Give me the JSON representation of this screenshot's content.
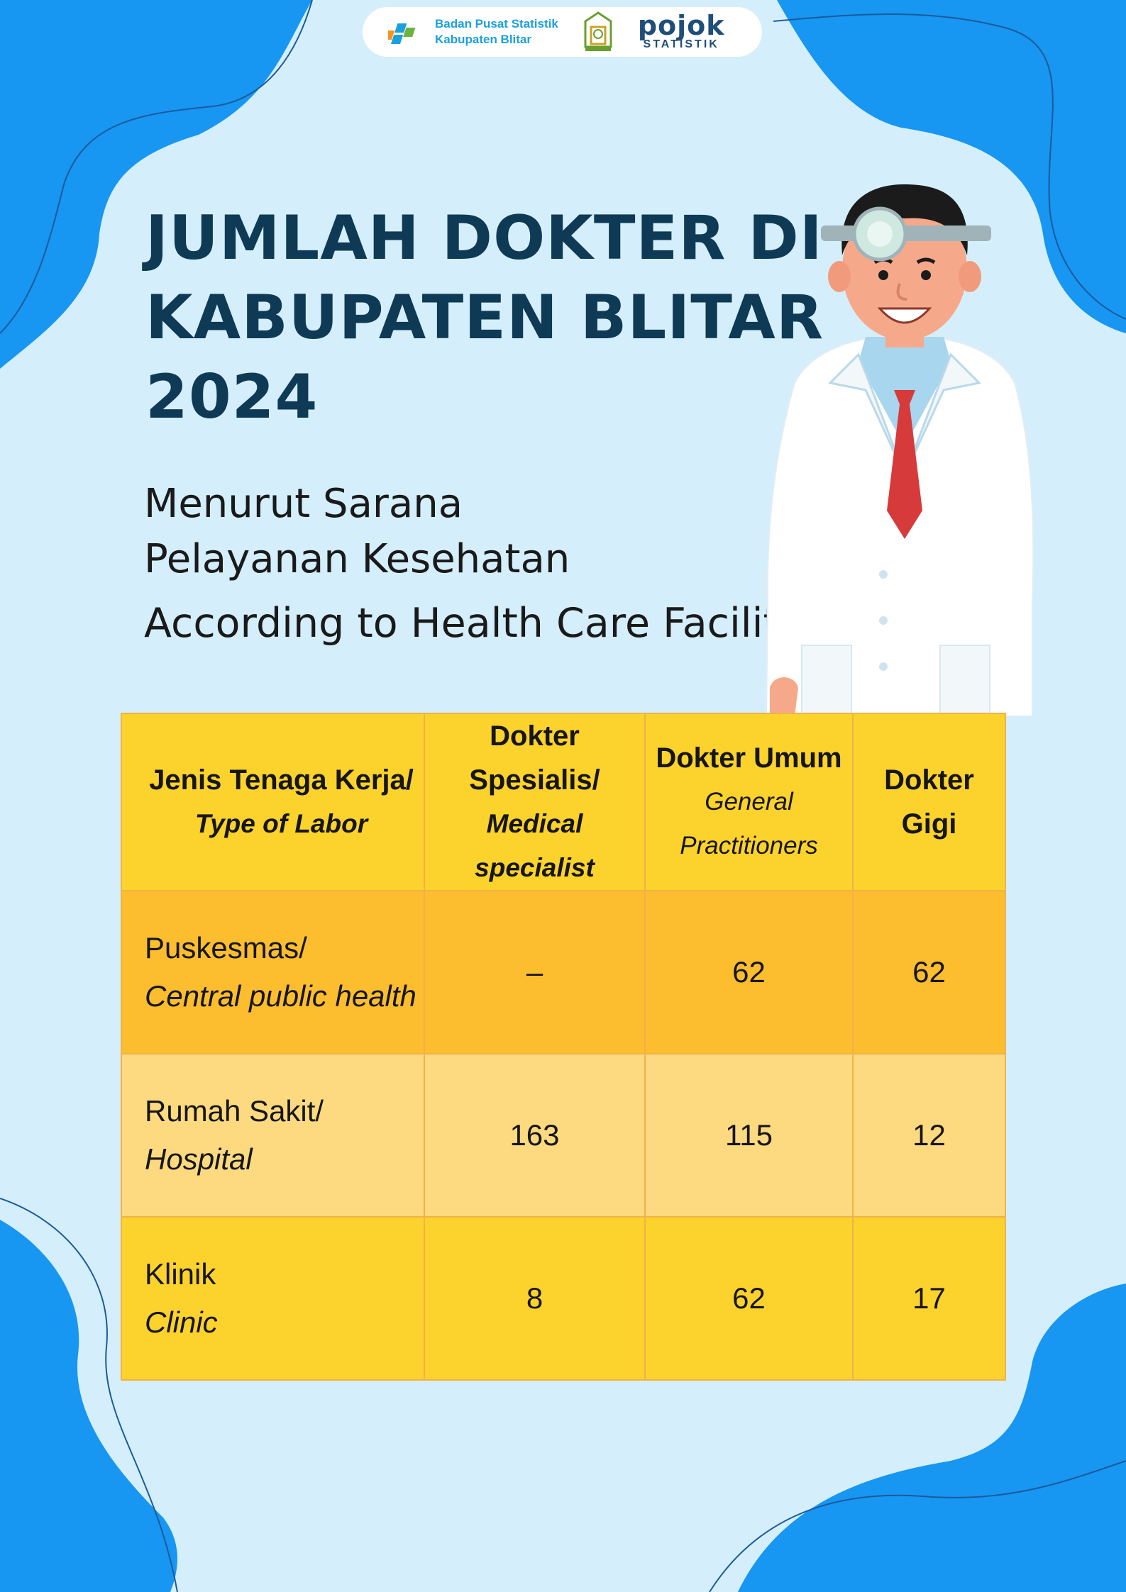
{
  "header": {
    "org_line1": "Badan Pusat Statistik",
    "org_line2": "Kabupaten Blitar",
    "pojok_word": "pojok",
    "pojok_sub": "STATISTIK"
  },
  "title": {
    "line1": "JUMLAH DOKTER DI",
    "line2": "KABUPATEN BLITAR",
    "line3": "2024"
  },
  "subtitle": {
    "line1": "Menurut Sarana",
    "line2": "Pelayanan Kesehatan",
    "english": "According to Health Care Facility"
  },
  "table": {
    "headers": [
      {
        "label": "Jenis Tenaga Kerja/",
        "english": "Type of Labor"
      },
      {
        "label": "Dokter Spesialis/",
        "english": "Medical specialist"
      },
      {
        "label": "Dokter Umum",
        "english": "General Practitioners"
      },
      {
        "label": "Dokter",
        "english": "Gigi"
      }
    ],
    "rows": [
      {
        "label": "Puskesmas/",
        "english": "Central public health",
        "specialist": "–",
        "general": "62",
        "dentist": "62"
      },
      {
        "label": "Rumah Sakit/",
        "english": "Hospital",
        "specialist": "163",
        "general": "115",
        "dentist": "12"
      },
      {
        "label": "Klinik",
        "english": "Clinic",
        "specialist": "8",
        "general": "62",
        "dentist": "17"
      }
    ]
  },
  "colors": {
    "background": "#d4effb",
    "blob_blue": "#1796f2",
    "title": "#0f3a55",
    "header_yellow": "#fcd22c",
    "row_orange": "#fcbd2f",
    "row_light": "#fdd97f"
  }
}
